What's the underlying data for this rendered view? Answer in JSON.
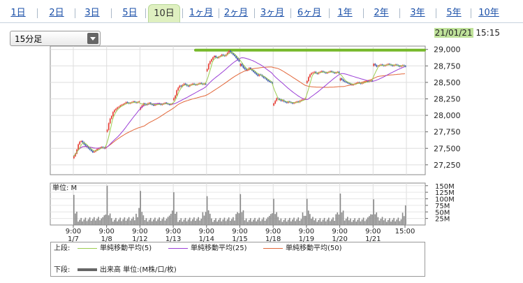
{
  "tabs": [
    {
      "label": "1日",
      "active": false
    },
    {
      "label": "2日",
      "active": false
    },
    {
      "label": "3日",
      "active": false
    },
    {
      "label": "5日",
      "active": false
    },
    {
      "label": "10日",
      "active": true
    },
    {
      "label": "1ヶ月",
      "active": false
    },
    {
      "label": "2ヶ月",
      "active": false
    },
    {
      "label": "3ヶ月",
      "active": false
    },
    {
      "label": "6ヶ月",
      "active": false
    },
    {
      "label": "1年",
      "active": false
    },
    {
      "label": "2年",
      "active": false
    },
    {
      "label": "3年",
      "active": false
    },
    {
      "label": "5年",
      "active": false
    },
    {
      "label": "10年",
      "active": false
    }
  ],
  "interval_select": {
    "value": "15分足"
  },
  "datetime": {
    "date": "21/01/21",
    "time": "15:15"
  },
  "colors": {
    "up": "#e8453c",
    "down": "#3553a8",
    "ma5": "#9ccc50",
    "ma25": "#9b3fd6",
    "ma50": "#e2673a",
    "volume": "#888888",
    "resistance": "#76b82a"
  },
  "legend": {
    "upper_label": "上段:",
    "lower_label": "下段:",
    "ma5": "単純移動平均(5)",
    "ma25": "単純移動平均(25)",
    "ma50": "単純移動平均(50)",
    "volume": "出来高 単位:(M株/口/枚)"
  },
  "chart_data": {
    "type": "candlestick",
    "price_axis": {
      "ylim": [
        27100,
        29050
      ],
      "ticks": [
        "29,000",
        "28,750",
        "28,500",
        "28,250",
        "28,000",
        "27,750",
        "27,500",
        "27,250"
      ],
      "tick_values": [
        29000,
        28750,
        28500,
        28250,
        28000,
        27750,
        27500,
        27250
      ]
    },
    "volume_axis": {
      "unit_label": "単位: M",
      "ylim": [
        0,
        160
      ],
      "ticks": [
        "150M",
        "125M",
        "100M",
        "75M",
        "50M",
        "25M"
      ],
      "tick_values": [
        150,
        125,
        100,
        75,
        50,
        25
      ]
    },
    "x_labels": [
      {
        "time": "9:00",
        "day": "1/7"
      },
      {
        "time": "9:00",
        "day": "1/8"
      },
      {
        "time": "9:00",
        "day": "1/12"
      },
      {
        "time": "9:00",
        "day": "1/13"
      },
      {
        "time": "9:00",
        "day": "1/14"
      },
      {
        "time": "9:00",
        "day": "1/15"
      },
      {
        "time": "9:00",
        "day": "1/18"
      },
      {
        "time": "9:00",
        "day": "1/19"
      },
      {
        "time": "9:00",
        "day": "1/20"
      },
      {
        "time": "9:00",
        "day": "1/21"
      },
      {
        "time": "15:00",
        "day": ""
      }
    ],
    "resistance_level": 29000,
    "days": [
      {
        "label": "1/7",
        "prices": [
          27380,
          27420,
          27480,
          27560,
          27600,
          27610,
          27590,
          27560,
          27540,
          27520,
          27500,
          27480,
          27460,
          27440,
          27450,
          27470,
          27490,
          27500,
          27510,
          27520,
          27510,
          27500,
          27520
        ]
      },
      {
        "label": "1/8",
        "prices": [
          27780,
          27880,
          27950,
          27990,
          28050,
          28080,
          28100,
          28120,
          28130,
          28150,
          28160,
          28170,
          28180,
          28200,
          28190,
          28180,
          28190,
          28200,
          28210,
          28200,
          28190,
          28200,
          28210
        ]
      },
      {
        "label": "1/12",
        "prices": [
          28120,
          28150,
          28180,
          28170,
          28160,
          28180,
          28190,
          28170,
          28160,
          28150,
          28160,
          28170,
          28180,
          28170,
          28160,
          28170,
          28180,
          28190,
          28180,
          28170,
          28160,
          28170,
          28180
        ]
      },
      {
        "label": "1/13",
        "prices": [
          28260,
          28300,
          28380,
          28420,
          28450,
          28440,
          28460,
          28480,
          28470,
          28450,
          28440,
          28460,
          28470,
          28480,
          28470,
          28460,
          28470,
          28480,
          28490,
          28480,
          28470,
          28480,
          28470
        ]
      },
      {
        "label": "1/14",
        "prices": [
          28700,
          28780,
          28820,
          28850,
          28880,
          28900,
          28880,
          28870,
          28890,
          28900,
          28920,
          28910,
          28900,
          28920,
          28950,
          28980,
          28960,
          28940,
          28920,
          28900,
          28870,
          28840,
          28820
        ]
      },
      {
        "label": "1/15",
        "prices": [
          28780,
          28750,
          28720,
          28700,
          28680,
          28690,
          28720,
          28700,
          28680,
          28660,
          28640,
          28620,
          28600,
          28620,
          28610,
          28590,
          28570,
          28560,
          28540,
          28520,
          28510,
          28500,
          28480
        ]
      },
      {
        "label": "1/18",
        "prices": [
          28180,
          28220,
          28260,
          28250,
          28240,
          28220,
          28230,
          28210,
          28200,
          28190,
          28210,
          28200,
          28190,
          28180,
          28190,
          28200,
          28210,
          28200,
          28220,
          28230,
          28240,
          28250,
          28260
        ]
      },
      {
        "label": "1/19",
        "prices": [
          28520,
          28580,
          28620,
          28640,
          28650,
          28660,
          28640,
          28630,
          28650,
          28660,
          28670,
          28660,
          28650,
          28640,
          28650,
          28660,
          28670,
          28660,
          28650,
          28640,
          28650,
          28660,
          28640
        ]
      },
      {
        "label": "1/20",
        "prices": [
          28560,
          28540,
          28520,
          28510,
          28500,
          28490,
          28480,
          28470,
          28460,
          28470,
          28480,
          28490,
          28500,
          28490,
          28480,
          28490,
          28500,
          28510,
          28520,
          28510,
          28520,
          28530,
          28520
        ]
      },
      {
        "label": "1/21",
        "prices": [
          28780,
          28760,
          28740,
          28750,
          28760,
          28770,
          28760,
          28750,
          28760,
          28770,
          28780,
          28770,
          28760,
          28750,
          28760,
          28770,
          28760,
          28750,
          28740,
          28750,
          28760,
          28750,
          28740
        ]
      }
    ],
    "volume_spike": [
      115,
      150,
      130,
      125,
      110,
      118,
      100,
      100,
      120,
      98
    ],
    "volume_close_spike": [
      40,
      65,
      55,
      50,
      45,
      45,
      35,
      40,
      40,
      75
    ]
  }
}
